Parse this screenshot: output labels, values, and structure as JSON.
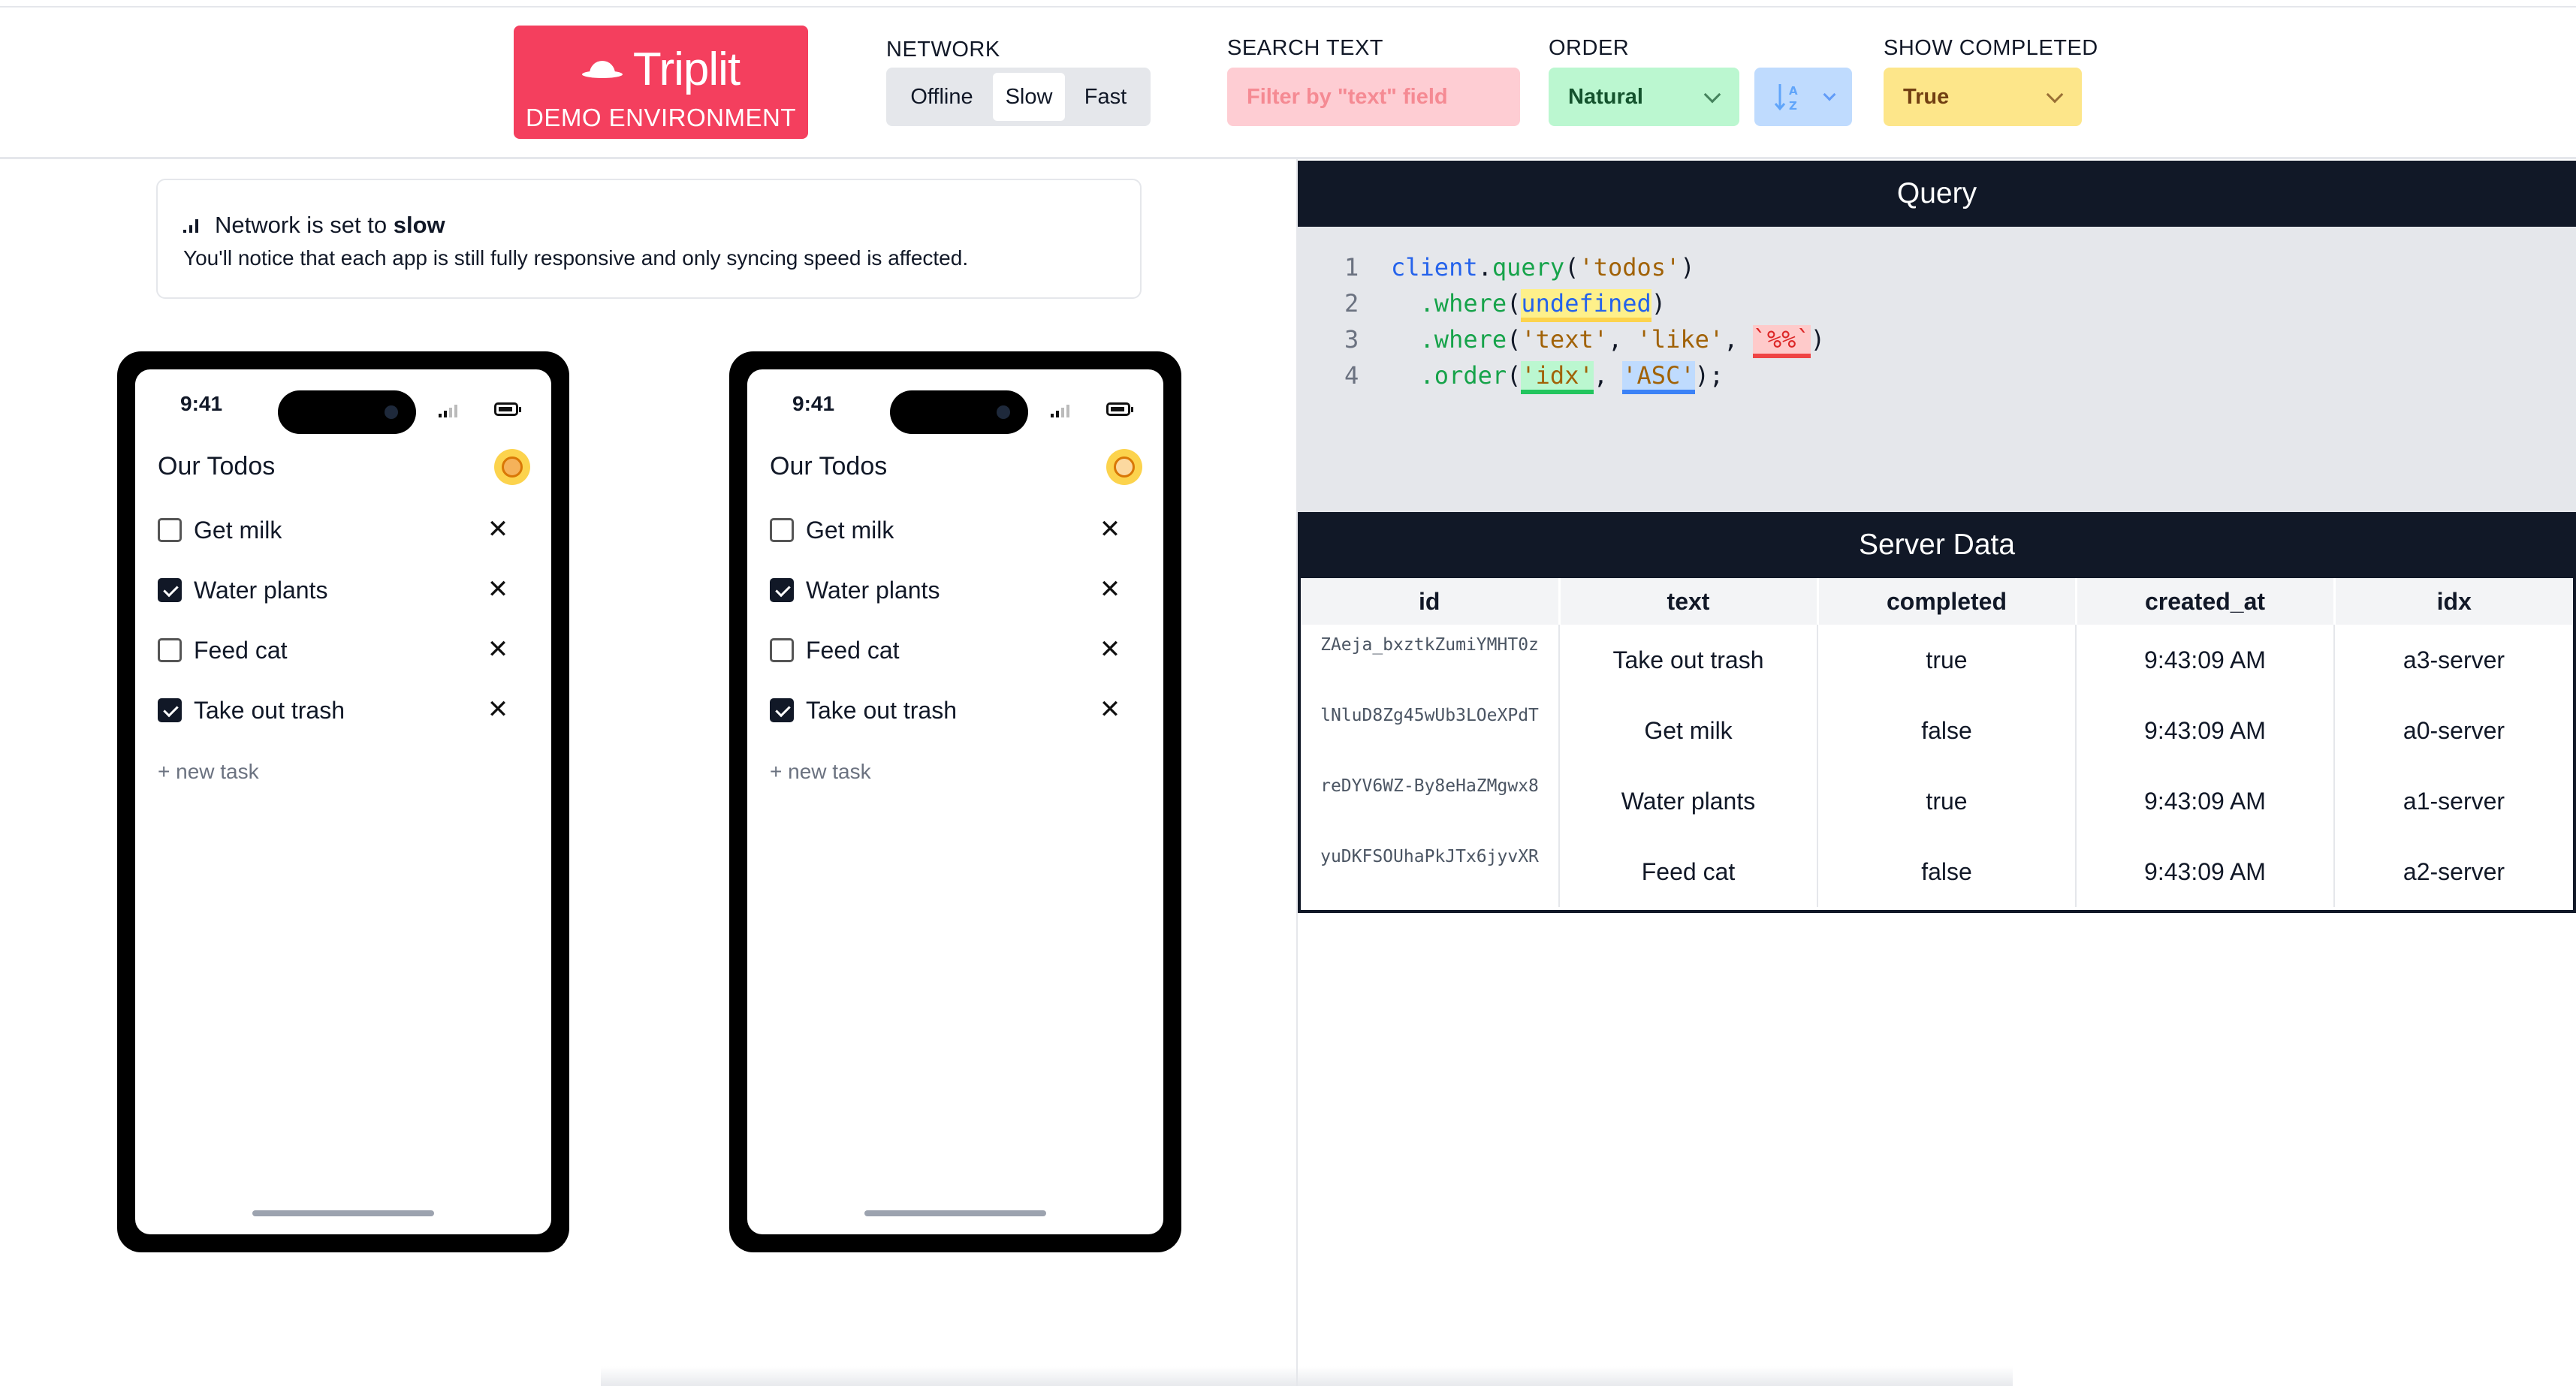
{
  "header": {
    "logo_title": "Triplit",
    "logo_subtitle": "DEMO ENVIRONMENT",
    "network": {
      "label": "NETWORK",
      "options": [
        "Offline",
        "Slow",
        "Fast"
      ],
      "selected": "Slow"
    },
    "search": {
      "label": "SEARCH TEXT",
      "placeholder": "Filter by \"text\" field",
      "value": ""
    },
    "order": {
      "label": "ORDER",
      "value": "Natural",
      "direction_icon": "sort-ascending-icon"
    },
    "show_completed": {
      "label": "SHOW COMPLETED",
      "value": "True"
    }
  },
  "colors": {
    "brand": "#f43f5e",
    "search_bg": "#fecdd3",
    "order_bg": "#bbf7d0",
    "direction_bg": "#bfdbfe",
    "show_completed_bg": "#fde68a",
    "panel_header": "#111827"
  },
  "notice": {
    "title_prefix": "Network is set to",
    "title_value": "slow",
    "body": "You'll notice that each app is still fully responsive and only syncing speed is affected."
  },
  "phones": [
    {
      "time": "9:41",
      "title": "Our Todos",
      "avatar_icon": "user-avatar-icon",
      "todos": [
        {
          "text": "Get milk",
          "completed": false
        },
        {
          "text": "Water plants",
          "completed": true
        },
        {
          "text": "Feed cat",
          "completed": false
        },
        {
          "text": "Take out trash",
          "completed": true
        }
      ],
      "new_task": "+ new task"
    },
    {
      "time": "9:41",
      "title": "Our Todos",
      "avatar_icon": "user-avatar-icon",
      "todos": [
        {
          "text": "Get milk",
          "completed": false
        },
        {
          "text": "Water plants",
          "completed": true
        },
        {
          "text": "Feed cat",
          "completed": false
        },
        {
          "text": "Take out trash",
          "completed": true
        }
      ],
      "new_task": "+ new task"
    }
  ],
  "query_panel": {
    "title": "Query",
    "lines": [
      {
        "n": "1",
        "text": "client.query('todos')"
      },
      {
        "n": "2",
        "text": "  .where(undefined)"
      },
      {
        "n": "3",
        "text": "  .where('text', 'like', `%%`)"
      },
      {
        "n": "4",
        "text": "  .order('idx', 'ASC');"
      }
    ]
  },
  "server_panel": {
    "title": "Server Data",
    "columns": [
      "id",
      "text",
      "completed",
      "created_at",
      "idx"
    ],
    "rows": [
      [
        "ZAeja_bxztkZumiYMHT0z",
        "Take out trash",
        "true",
        "9:43:09 AM",
        "a3-server"
      ],
      [
        "lNluD8Zg45wUb3LOeXPdT",
        "Get milk",
        "false",
        "9:43:09 AM",
        "a0-server"
      ],
      [
        "reDYV6WZ-By8eHaZMgwx8",
        "Water plants",
        "true",
        "9:43:09 AM",
        "a1-server"
      ],
      [
        "yuDKFSOUhaPkJTx6jyvXR",
        "Feed cat",
        "false",
        "9:43:09 AM",
        "a2-server"
      ]
    ]
  }
}
